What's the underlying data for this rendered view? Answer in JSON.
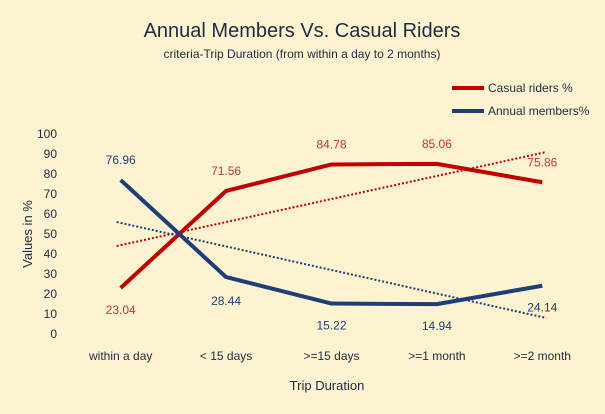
{
  "chart_data": {
    "type": "line",
    "title": "Annual Members Vs. Casual Riders",
    "subtitle": "criteria-Trip Duration (from within a day to 2 months)",
    "xlabel": "Trip Duration",
    "ylabel": "Values in %",
    "categories": [
      "within a day",
      "< 15 days",
      ">=15 days",
      ">=1 month",
      ">=2 month"
    ],
    "ylim": [
      0,
      100
    ],
    "yticks": [
      "0",
      "10",
      "20",
      "30",
      "40",
      "50",
      "60",
      "70",
      "80",
      "90",
      "100"
    ],
    "grid": false,
    "legend_position": "top-right",
    "series": [
      {
        "name": "Casual riders %",
        "color": "#c00000",
        "values": [
          23.04,
          71.56,
          84.78,
          85.06,
          75.86
        ],
        "labels": [
          "23.04",
          "71.56",
          "84.78",
          "85.06",
          "75.86"
        ],
        "trendline": [
          44,
          91
        ]
      },
      {
        "name": "Annual members%",
        "color": "#1f3d7a",
        "values": [
          76.96,
          28.44,
          15.22,
          14.94,
          24.14
        ],
        "labels": [
          "76.96",
          "28.44",
          "15.22",
          "14.94",
          "24.14"
        ],
        "trendline": [
          56,
          8
        ]
      }
    ]
  }
}
